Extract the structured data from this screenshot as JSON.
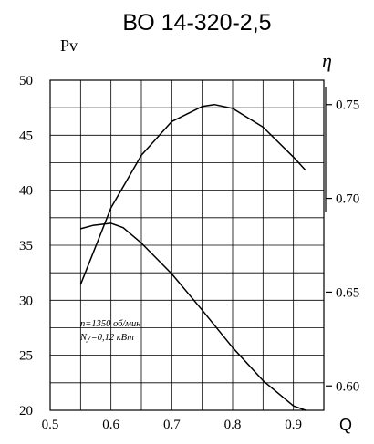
{
  "chart_data": {
    "type": "line",
    "title": "ВО 14-320-2,5",
    "xlabel": "Q",
    "ylabel": "Pv",
    "y2label": "η",
    "xlim": [
      0.5,
      0.95
    ],
    "ylim": [
      20,
      50
    ],
    "y2lim": [
      0.587,
      0.763
    ],
    "x_ticks": [
      "0.5",
      "0.6",
      "0.7",
      "0.8",
      "0.9"
    ],
    "x_tick_values": [
      0.5,
      0.6,
      0.7,
      0.8,
      0.9
    ],
    "y_ticks": [
      "20",
      "25",
      "30",
      "35",
      "40",
      "45",
      "50"
    ],
    "y_tick_values": [
      20,
      25,
      30,
      35,
      40,
      45,
      50
    ],
    "y2_ticks": [
      "0.60",
      "0.65",
      "0.70",
      "0.75"
    ],
    "y2_tick_values": [
      0.6,
      0.65,
      0.7,
      0.75
    ],
    "grid": true,
    "annotation": [
      "n=1350 об/мин",
      "Ny=0,12  кВт"
    ],
    "series": [
      {
        "axis": "left",
        "x": [
          0.55,
          0.57,
          0.6,
          0.62,
          0.65,
          0.7,
          0.75,
          0.8,
          0.85,
          0.9,
          0.92
        ],
        "y": [
          36.5,
          36.8,
          37.0,
          36.6,
          35.2,
          32.4,
          29.1,
          25.7,
          22.7,
          20.4,
          20.0
        ]
      },
      {
        "axis": "right",
        "x": [
          0.55,
          0.6,
          0.65,
          0.7,
          0.75,
          0.77,
          0.8,
          0.85,
          0.9,
          0.92
        ],
        "y": [
          0.654,
          0.695,
          0.723,
          0.741,
          0.749,
          0.75,
          0.748,
          0.738,
          0.722,
          0.715
        ]
      }
    ]
  }
}
